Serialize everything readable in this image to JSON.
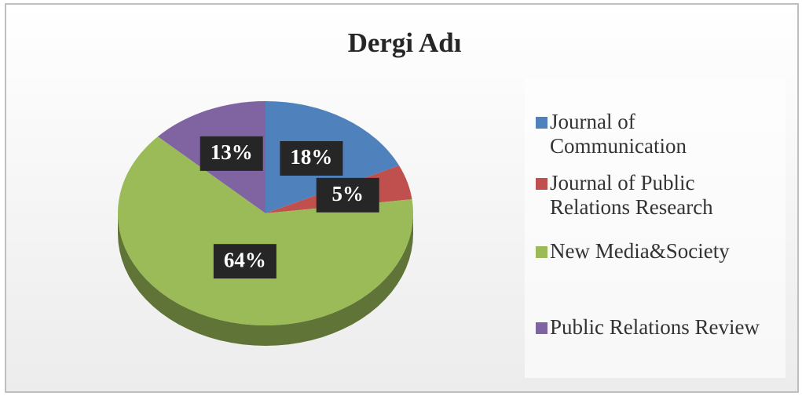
{
  "chart_data": {
    "type": "pie",
    "title": "Dergi Adı",
    "categories": [
      "Journal of Communication",
      "Journal of Public Relations Research",
      "New Media&Society",
      "Public Relations Review"
    ],
    "values": [
      18,
      5,
      64,
      13
    ],
    "value_labels": [
      "18%",
      "5%",
      "64%",
      "13%"
    ],
    "colors": [
      "#4f81bd",
      "#c0504d",
      "#9bbb59",
      "#8064a2"
    ],
    "legend": "right"
  }
}
